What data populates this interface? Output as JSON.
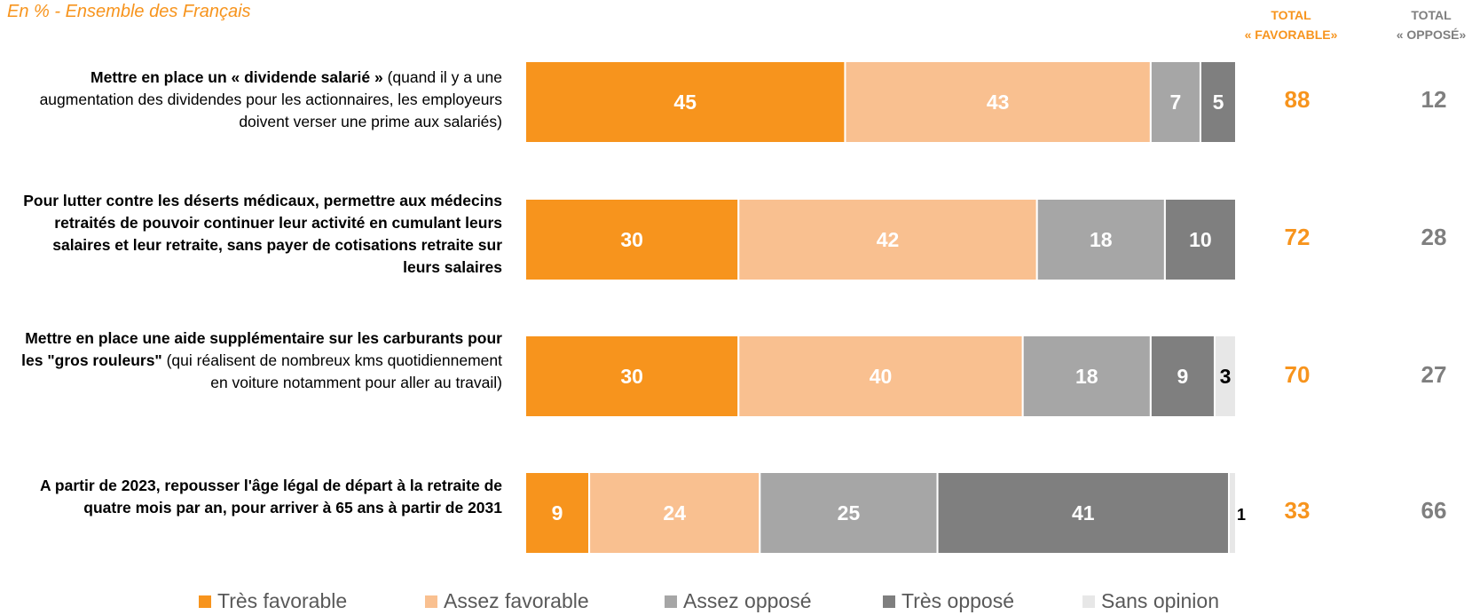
{
  "subtitle": "En % - Ensemble des Français",
  "columns": {
    "favorable": [
      "TOTAL",
      "« FAVORABLE»"
    ],
    "oppose": [
      "TOTAL",
      "« OPPOSÉ»"
    ]
  },
  "colors": {
    "tres_favorable": "#F7941D",
    "assez_favorable": "#F9C090",
    "assez_oppose": "#A6A6A6",
    "tres_oppose": "#7F7F7F",
    "sans_opinion": "#E7E7E7"
  },
  "rows": [
    {
      "label_bold": "Mettre en place un « dividende salarié »",
      "label_rest": " (quand il y a une augmentation des dividendes pour les actionnaires, les employeurs doivent verser une prime aux salariés)",
      "total_favorable": "88",
      "total_oppose": "12"
    },
    {
      "label_bold": "Pour lutter contre les déserts médicaux, permettre aux médecins retraités de pouvoir continuer leur activité en cumulant leurs salaires et leur retraite, sans payer de cotisations retraite sur leurs salaires",
      "label_rest": "",
      "total_favorable": "72",
      "total_oppose": "28"
    },
    {
      "label_bold": "Mettre en place une aide supplémentaire sur les carburants pour les \"gros rouleurs\"",
      "label_rest": " (qui réalisent de nombreux kms quotidiennement en voiture notamment pour aller au travail)",
      "total_favorable": "70",
      "total_oppose": "27"
    },
    {
      "label_bold": "A partir de 2023, repousser l'âge légal de départ à la retraite de quatre mois par an, pour arriver à 65 ans à partir de 2031",
      "label_rest": "",
      "total_favorable": "33",
      "total_oppose": "66"
    }
  ],
  "chart_data": {
    "type": "bar",
    "orientation": "horizontal",
    "stacked": true,
    "unit": "%",
    "xlim": [
      0,
      100
    ],
    "categories": [
      "Mettre en place un « dividende salarié »",
      "Pour lutter contre les déserts médicaux",
      "Mettre en place une aide supplémentaire sur les carburants",
      "A partir de 2023, repousser l'âge légal de départ à la retraite"
    ],
    "series": [
      {
        "name": "Très favorable",
        "values": [
          45,
          30,
          30,
          9
        ]
      },
      {
        "name": "Assez favorable",
        "values": [
          43,
          42,
          40,
          24
        ]
      },
      {
        "name": "Assez opposé",
        "values": [
          7,
          18,
          18,
          25
        ]
      },
      {
        "name": "Très opposé",
        "values": [
          5,
          10,
          9,
          41
        ]
      },
      {
        "name": "Sans opinion",
        "values": [
          0,
          0,
          3,
          1
        ]
      }
    ],
    "legend_position": "bottom"
  }
}
